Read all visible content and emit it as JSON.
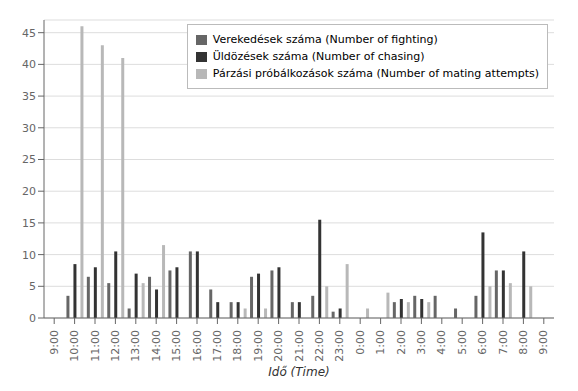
{
  "chart_data": {
    "type": "bar",
    "xlabel": "Idő (Time)",
    "categories": [
      "9:00",
      "10:00",
      "11:00",
      "12:00",
      "13:00",
      "14:00",
      "15:00",
      "16:00",
      "17:00",
      "18:00",
      "19:00",
      "20:00",
      "21:00",
      "22:00",
      "23:00",
      "0:00",
      "1:00",
      "2:00",
      "3:00",
      "4:00",
      "5:00",
      "6:00",
      "7:00",
      "8:00",
      "9:00"
    ],
    "series": [
      {
        "name": "Verekedések száma (Number of fighting)",
        "color": "#666666",
        "values": [
          0,
          3.5,
          6.5,
          5.5,
          1.5,
          6.5,
          7.5,
          10.5,
          4.5,
          2.5,
          6.5,
          7.5,
          2.5,
          3.5,
          1.0,
          0,
          0,
          2.5,
          3.5,
          3.5,
          1.5,
          3.5,
          7.5,
          0,
          0
        ]
      },
      {
        "name": "Üldözések száma (Number of chasing)",
        "color": "#333333",
        "values": [
          0,
          8.5,
          8.0,
          10.5,
          7.0,
          4.5,
          8.0,
          10.5,
          2.5,
          2.5,
          7.0,
          8.0,
          2.5,
          15.5,
          1.5,
          0,
          0,
          3.0,
          3.0,
          0,
          0,
          13.5,
          7.5,
          10.5,
          0
        ]
      },
      {
        "name": "Párzási próbálkozások száma (Number of mating attempts)",
        "color": "#b8b8b8",
        "values": [
          0,
          46,
          43,
          41,
          5.5,
          11.5,
          0,
          0,
          0,
          1.5,
          1.5,
          0,
          0,
          5.0,
          8.5,
          1.5,
          4.0,
          2.5,
          2.5,
          0,
          0,
          5.0,
          5.5,
          5.0,
          0
        ]
      }
    ],
    "ylim": [
      0,
      47
    ],
    "yticks": [
      0,
      5,
      10,
      15,
      20,
      25,
      30,
      35,
      40,
      45
    ],
    "grid": true,
    "legend": "upper right"
  }
}
